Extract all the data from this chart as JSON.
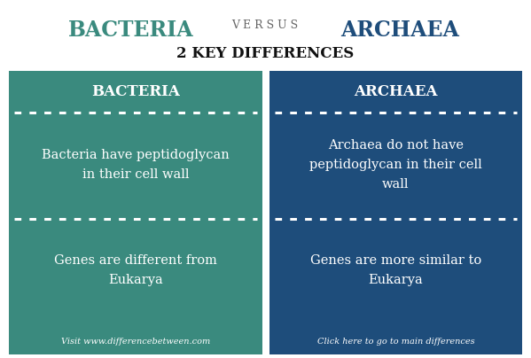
{
  "title_bacteria": "BACTERIA",
  "title_versus": "V E R S U S",
  "title_archaea": "ARCHAEA",
  "subtitle": "2 KEY DIFFERENCES",
  "bacteria_color": "#3a8a7e",
  "archaea_color": "#1e4d7b",
  "bacteria_header": "BACTERIA",
  "archaea_header": "ARCHAEA",
  "bacteria_point1": "Bacteria have peptidoglycan\nin their cell wall",
  "archaea_point1": "Archaea do not have\npeptidoglycan in their cell\nwall",
  "bacteria_point2": "Genes are different from\nEukarya",
  "archaea_point2": "Genes are more similar to\nEukarya",
  "bacteria_footer": "Visit www.differencebetween.com",
  "archaea_footer": "Click here to go to main differences",
  "text_white": "#ffffff",
  "title_bacteria_color": "#3a8a7e",
  "title_archaea_color": "#1e4d7b",
  "title_versus_color": "#666666",
  "subtitle_color": "#111111",
  "bg_color": "#ffffff",
  "fig_width": 5.99,
  "fig_height": 4.04,
  "dpi": 100
}
